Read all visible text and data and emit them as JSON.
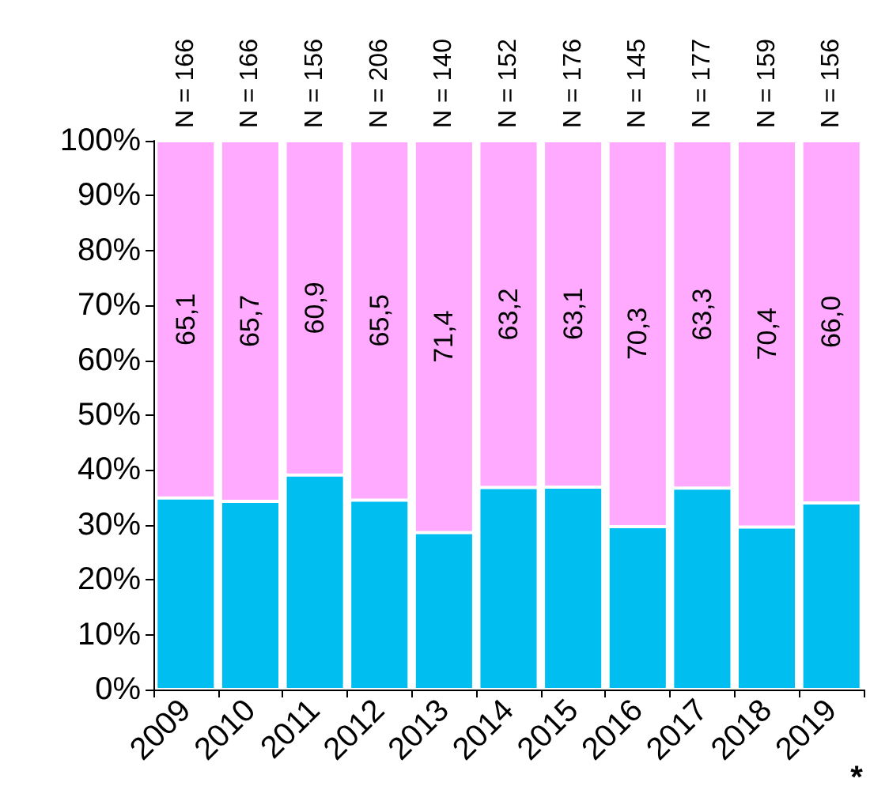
{
  "chart_data": {
    "type": "bar",
    "stacked": true,
    "categories": [
      "2009",
      "2010",
      "2011",
      "2012",
      "2013",
      "2014",
      "2015",
      "2016",
      "2017",
      "2018",
      "2019"
    ],
    "series": [
      {
        "color": "#00bff0",
        "values": [
          34.9,
          34.3,
          39.1,
          34.5,
          28.6,
          36.8,
          36.9,
          29.7,
          36.7,
          29.6,
          34.0
        ]
      },
      {
        "color": "#ffaaff",
        "values": [
          65.1,
          65.7,
          60.9,
          65.5,
          71.4,
          63.2,
          63.1,
          70.3,
          63.3,
          70.4,
          66.0
        ],
        "value_labels": [
          "65,1",
          "65,7",
          "60,9",
          "65,5",
          "71,4",
          "63,2",
          "63,1",
          "70,3",
          "63,3",
          "70,4",
          "66,0"
        ]
      }
    ],
    "ylim": [
      0,
      100
    ],
    "yticks": [
      {
        "value": 0,
        "label": "0%"
      },
      {
        "value": 10,
        "label": "10%"
      },
      {
        "value": 20,
        "label": "20%"
      },
      {
        "value": 30,
        "label": "30%"
      },
      {
        "value": 40,
        "label": "40%"
      },
      {
        "value": 50,
        "label": "50%"
      },
      {
        "value": 60,
        "label": "60%"
      },
      {
        "value": 70,
        "label": "70%"
      },
      {
        "value": 80,
        "label": "80%"
      },
      {
        "value": 90,
        "label": "90%"
      },
      {
        "value": 100,
        "label": "100%"
      }
    ],
    "grid": false,
    "annotations": [
      {
        "text": "N = 166",
        "x": "2009",
        "y": 100
      },
      {
        "text": "N = 166",
        "x": "2010",
        "y": 100
      },
      {
        "text": "N = 156",
        "x": "2011",
        "y": 100
      },
      {
        "text": "N = 206",
        "x": "2012",
        "y": 100
      },
      {
        "text": "N = 140",
        "x": "2013",
        "y": 100
      },
      {
        "text": "N = 152",
        "x": "2014",
        "y": 100
      },
      {
        "text": "N = 176",
        "x": "2015",
        "y": 100
      },
      {
        "text": "N = 145",
        "x": "2016",
        "y": 100
      },
      {
        "text": "N = 177",
        "x": "2017",
        "y": 100
      },
      {
        "text": "N = 159",
        "x": "2018",
        "y": 100
      },
      {
        "text": "N = 156",
        "x": "2019",
        "y": 100
      },
      "*"
    ]
  }
}
